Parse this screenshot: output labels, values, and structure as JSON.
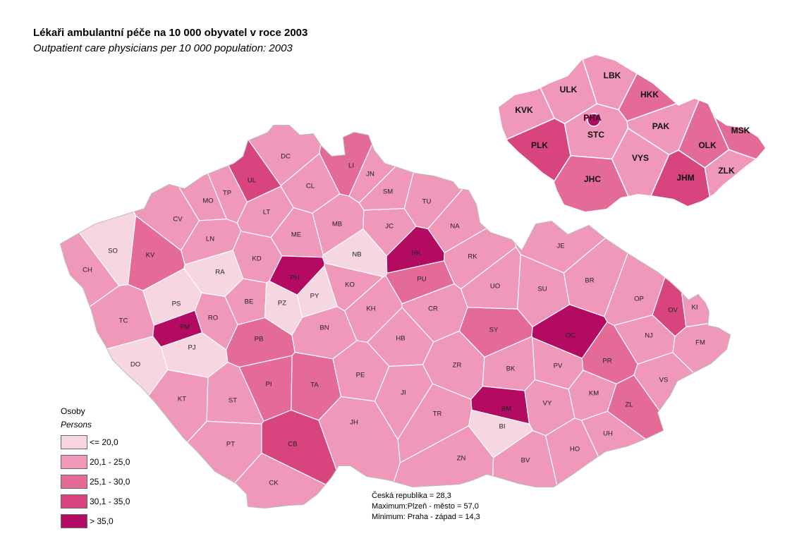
{
  "title": "Lékaři ambulantní péče na 10 000 obyvatel v roce 2003",
  "subtitle": "Outpatient care physicians per 10 000 population: 2003",
  "legend": {
    "title_cz": "Osoby",
    "title_en": "Persons",
    "classes": [
      {
        "label": "<= 20,0",
        "color": "#f6d6e0"
      },
      {
        "label": "20,1 - 25,0",
        "color": "#ef98b9"
      },
      {
        "label": "25,1 - 30,0",
        "color": "#e46a98"
      },
      {
        "label": "30,1 - 35,0",
        "color": "#d8447e"
      },
      {
        "label": "> 35,0",
        "color": "#b30a62"
      }
    ]
  },
  "stats": {
    "line1": "Česká republika = 28,3",
    "line2": "Maximum:Plzeň - město  = 57,0",
    "line3": "Minimum: Praha - západ  = 14,3"
  },
  "colors": {
    "c1": "#f6d6e0",
    "c2": "#ef98b9",
    "c3": "#e46a98",
    "c4": "#d8447e",
    "c5": "#b30a62",
    "border": "#ffffff",
    "outline": "#c9c9c9"
  },
  "districts": [
    {
      "code": "DC",
      "cls": 2
    },
    {
      "code": "UL",
      "cls": 4
    },
    {
      "code": "LI",
      "cls": 3
    },
    {
      "code": "JN",
      "cls": 2
    },
    {
      "code": "TP",
      "cls": 2
    },
    {
      "code": "CL",
      "cls": 2
    },
    {
      "code": "SM",
      "cls": 2
    },
    {
      "code": "TU",
      "cls": 2
    },
    {
      "code": "MO",
      "cls": 2
    },
    {
      "code": "CV",
      "cls": 2
    },
    {
      "code": "LT",
      "cls": 2
    },
    {
      "code": "MB",
      "cls": 2
    },
    {
      "code": "JC",
      "cls": 2
    },
    {
      "code": "NA",
      "cls": 2
    },
    {
      "code": "SO",
      "cls": 1
    },
    {
      "code": "KV",
      "cls": 3
    },
    {
      "code": "LN",
      "cls": 2
    },
    {
      "code": "ME",
      "cls": 2
    },
    {
      "code": "NB",
      "cls": 1
    },
    {
      "code": "HK",
      "cls": 5
    },
    {
      "code": "RK",
      "cls": 2
    },
    {
      "code": "JE",
      "cls": 2
    },
    {
      "code": "CH",
      "cls": 2
    },
    {
      "code": "RA",
      "cls": 1
    },
    {
      "code": "KD",
      "cls": 2
    },
    {
      "code": "PH",
      "cls": 5
    },
    {
      "code": "PU",
      "cls": 3
    },
    {
      "code": "KO",
      "cls": 2
    },
    {
      "code": "UO",
      "cls": 2
    },
    {
      "code": "SU",
      "cls": 2
    },
    {
      "code": "BR",
      "cls": 2
    },
    {
      "code": "PS",
      "cls": 1
    },
    {
      "code": "BE",
      "cls": 2
    },
    {
      "code": "PZ",
      "cls": 1
    },
    {
      "code": "PY",
      "cls": 1
    },
    {
      "code": "OP",
      "cls": 2
    },
    {
      "code": "OV",
      "cls": 4
    },
    {
      "code": "KI",
      "cls": 2
    },
    {
      "code": "TC",
      "cls": 2
    },
    {
      "code": "RO",
      "cls": 2
    },
    {
      "code": "KH",
      "cls": 2
    },
    {
      "code": "CR",
      "cls": 2
    },
    {
      "code": "SY",
      "cls": 3
    },
    {
      "code": "NJ",
      "cls": 2
    },
    {
      "code": "PM",
      "cls": 5
    },
    {
      "code": "BN",
      "cls": 2
    },
    {
      "code": "PB",
      "cls": 3
    },
    {
      "code": "HB",
      "cls": 2
    },
    {
      "code": "OC",
      "cls": 5
    },
    {
      "code": "FM",
      "cls": 2
    },
    {
      "code": "PJ",
      "cls": 1
    },
    {
      "code": "DO",
      "cls": 1
    },
    {
      "code": "ZR",
      "cls": 2
    },
    {
      "code": "BK",
      "cls": 2
    },
    {
      "code": "PV",
      "cls": 2
    },
    {
      "code": "PR",
      "cls": 3
    },
    {
      "code": "PI",
      "cls": 3
    },
    {
      "code": "TA",
      "cls": 3
    },
    {
      "code": "PE",
      "cls": 2
    },
    {
      "code": "VS",
      "cls": 2
    },
    {
      "code": "KM",
      "cls": 2
    },
    {
      "code": "JI",
      "cls": 2
    },
    {
      "code": "KT",
      "cls": 2
    },
    {
      "code": "ST",
      "cls": 2
    },
    {
      "code": "BM",
      "cls": 5
    },
    {
      "code": "VY",
      "cls": 2
    },
    {
      "code": "ZL",
      "cls": 3
    },
    {
      "code": "TR",
      "cls": 2
    },
    {
      "code": "JH",
      "cls": 2
    },
    {
      "code": "BI",
      "cls": 1
    },
    {
      "code": "UH",
      "cls": 2
    },
    {
      "code": "PT",
      "cls": 2
    },
    {
      "code": "CB",
      "cls": 4
    },
    {
      "code": "ZN",
      "cls": 2
    },
    {
      "code": "BV",
      "cls": 2
    },
    {
      "code": "HO",
      "cls": 2
    },
    {
      "code": "CK",
      "cls": 2
    }
  ],
  "regions": [
    {
      "code": "LBK",
      "cls": 2
    },
    {
      "code": "ULK",
      "cls": 2
    },
    {
      "code": "HKK",
      "cls": 3
    },
    {
      "code": "KVK",
      "cls": 2
    },
    {
      "code": "PHA",
      "cls": 5
    },
    {
      "code": "STC",
      "cls": 2
    },
    {
      "code": "PAK",
      "cls": 2
    },
    {
      "code": "MSK",
      "cls": 3
    },
    {
      "code": "PLK",
      "cls": 4
    },
    {
      "code": "OLK",
      "cls": 3
    },
    {
      "code": "VYS",
      "cls": 2
    },
    {
      "code": "ZLK",
      "cls": 2
    },
    {
      "code": "JHC",
      "cls": 3
    },
    {
      "code": "JHM",
      "cls": 4
    }
  ]
}
